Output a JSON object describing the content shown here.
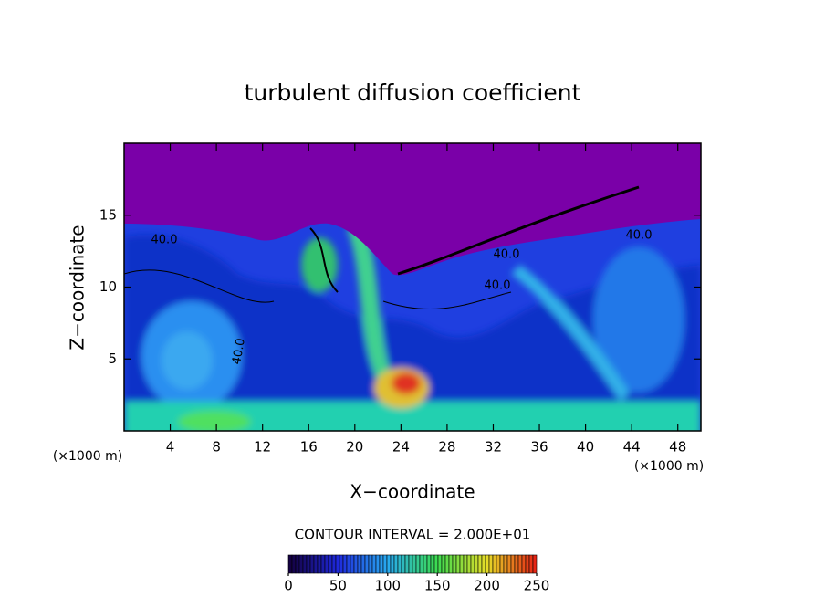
{
  "chart_data": {
    "type": "contour",
    "title": "turbulent diffusion coefficient",
    "xlabel": "X−coordinate",
    "ylabel": "Z−coordinate",
    "xunit": "(×1000 m)",
    "yunit": "(×1000 m)",
    "xlim": [
      0,
      50
    ],
    "xticks": [
      4,
      8,
      12,
      16,
      20,
      24,
      28,
      32,
      36,
      40,
      44,
      48
    ],
    "ylim": [
      0,
      20
    ],
    "yticks": [
      5,
      10,
      15
    ],
    "contour_interval": "CONTOUR INTERVAL = 2.000E+01",
    "contour_labels": [
      "40.0",
      "40.0",
      "40.0",
      "40.0",
      "40.0"
    ],
    "colorbar": {
      "lim": [
        0,
        250
      ],
      "ticks": [
        0,
        50,
        100,
        150,
        200,
        250
      ]
    }
  }
}
